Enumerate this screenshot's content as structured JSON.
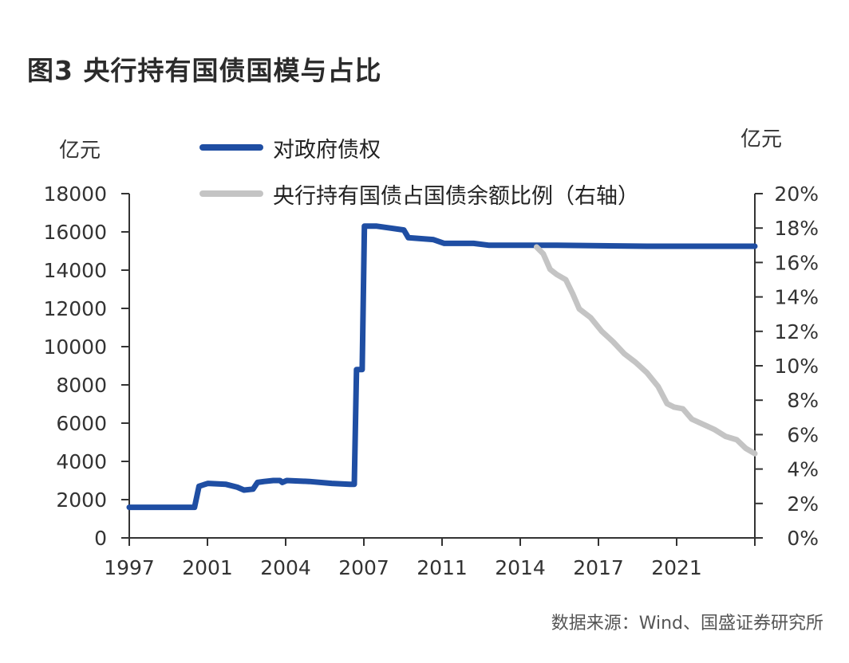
{
  "title": "图3  央行持有国债国模与占比",
  "source": "数据来源：Wind、国盛证券研究所",
  "chart_data": {
    "type": "line",
    "left_axis": {
      "unit": "亿元",
      "ylim": [
        0,
        18000
      ],
      "ticks": [
        "0",
        "2000",
        "4000",
        "6000",
        "8000",
        "10000",
        "12000",
        "14000",
        "16000",
        "18000"
      ]
    },
    "right_axis": {
      "unit": "亿元",
      "ylim": [
        0,
        20
      ],
      "ticks": [
        "0%",
        "2%",
        "4%",
        "6%",
        "8%",
        "10%",
        "12%",
        "14%",
        "16%",
        "18%",
        "20%"
      ]
    },
    "x_ticks": [
      "1997",
      "2001",
      "2004",
      "2007",
      "2011",
      "2014",
      "2017",
      "2021"
    ],
    "x_range": [
      1997,
      2024.8
    ],
    "series": [
      {
        "name": "对政府债权",
        "axis": "left",
        "color": "#1f4ea3",
        "points": [
          [
            1997.0,
            1600
          ],
          [
            1999.9,
            1600
          ],
          [
            2000.1,
            2700
          ],
          [
            2000.5,
            2850
          ],
          [
            2001.3,
            2800
          ],
          [
            2001.8,
            2650
          ],
          [
            2002.1,
            2500
          ],
          [
            2002.5,
            2550
          ],
          [
            2002.7,
            2900
          ],
          [
            2003.0,
            2950
          ],
          [
            2003.4,
            3000
          ],
          [
            2003.7,
            3000
          ],
          [
            2003.8,
            2900
          ],
          [
            2004.0,
            3000
          ],
          [
            2005.0,
            2950
          ],
          [
            2006.0,
            2850
          ],
          [
            2006.8,
            2800
          ],
          [
            2007.0,
            2800
          ],
          [
            2007.1,
            8800
          ],
          [
            2007.35,
            8800
          ],
          [
            2007.45,
            16300
          ],
          [
            2008.0,
            16300
          ],
          [
            2008.6,
            16200
          ],
          [
            2009.2,
            16100
          ],
          [
            2009.4,
            15700
          ],
          [
            2010.5,
            15600
          ],
          [
            2011.0,
            15400
          ],
          [
            2012.3,
            15400
          ],
          [
            2013.0,
            15300
          ],
          [
            2016.0,
            15300
          ],
          [
            2020.0,
            15250
          ],
          [
            2024.8,
            15250
          ]
        ]
      },
      {
        "name": "央行持有国债占国债余额比例（右轴）",
        "axis": "right",
        "color": "#c4c4c4",
        "points": [
          [
            2015.1,
            16.9
          ],
          [
            2015.4,
            16.5
          ],
          [
            2015.7,
            15.6
          ],
          [
            2016.0,
            15.3
          ],
          [
            2016.4,
            15.0
          ],
          [
            2016.7,
            14.2
          ],
          [
            2017.0,
            13.3
          ],
          [
            2017.5,
            12.8
          ],
          [
            2018.0,
            12.0
          ],
          [
            2018.5,
            11.4
          ],
          [
            2019.0,
            10.7
          ],
          [
            2019.5,
            10.2
          ],
          [
            2020.0,
            9.6
          ],
          [
            2020.5,
            8.8
          ],
          [
            2020.9,
            7.8
          ],
          [
            2021.2,
            7.6
          ],
          [
            2021.6,
            7.5
          ],
          [
            2022.0,
            6.9
          ],
          [
            2022.5,
            6.6
          ],
          [
            2023.0,
            6.3
          ],
          [
            2023.5,
            5.9
          ],
          [
            2024.0,
            5.7
          ],
          [
            2024.4,
            5.2
          ],
          [
            2024.8,
            4.9
          ]
        ]
      }
    ]
  }
}
